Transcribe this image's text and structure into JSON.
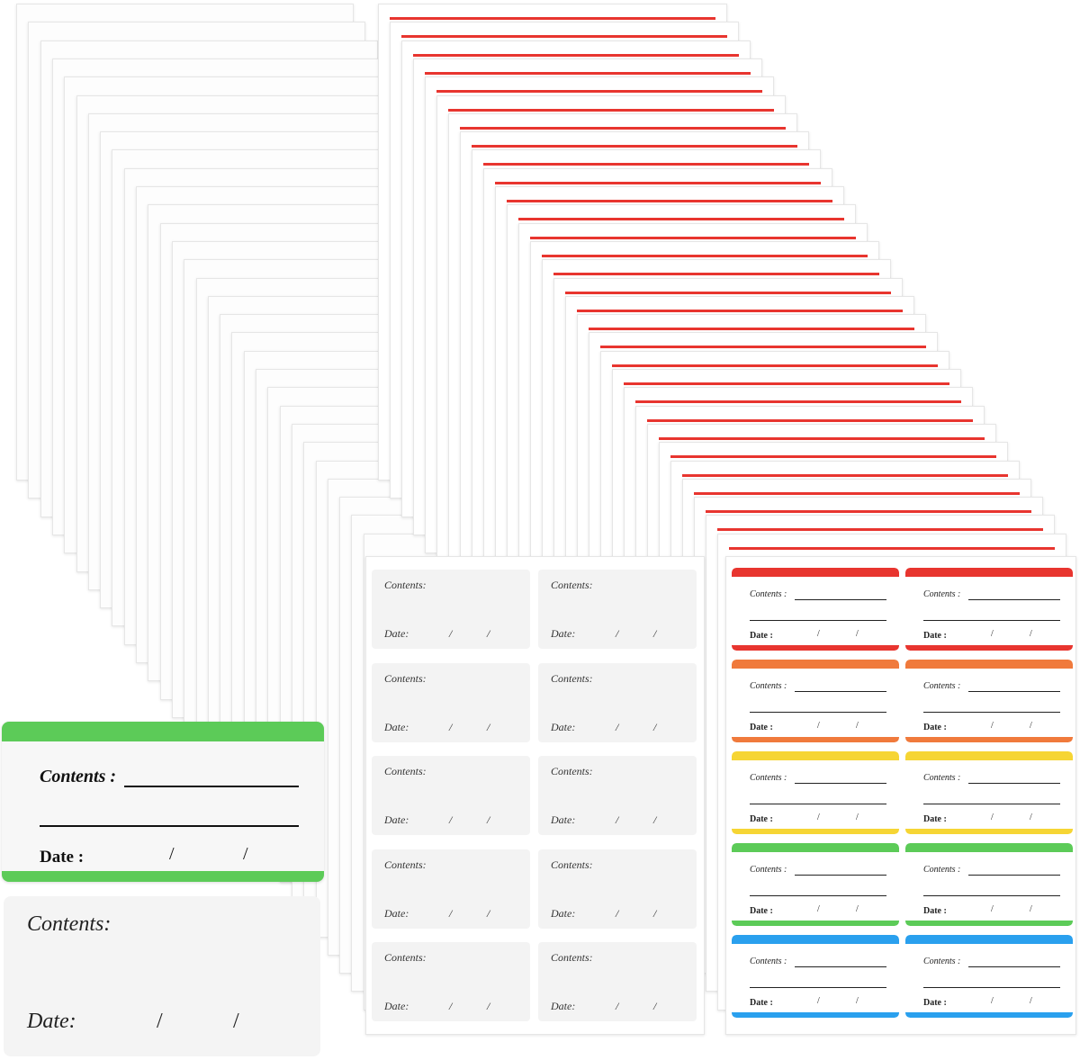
{
  "colors": {
    "red": "#e8352f",
    "orange": "#f07a3c",
    "yellow": "#f6d534",
    "green": "#5ccb58",
    "blue": "#2aa0ee",
    "sheet_border": "#e6e6e6",
    "clear_label": "#f3f3f3"
  },
  "labels": {
    "contents": "Contents:",
    "contents_spaced": "Contents :",
    "date": "Date:",
    "date_spaced": "Date :",
    "slash": "/"
  },
  "clear_sheet": {
    "rows": 5,
    "cols": 2
  },
  "color_sheet": {
    "row_colors": [
      "red",
      "orange",
      "yellow",
      "green",
      "blue"
    ],
    "cols": 2
  }
}
